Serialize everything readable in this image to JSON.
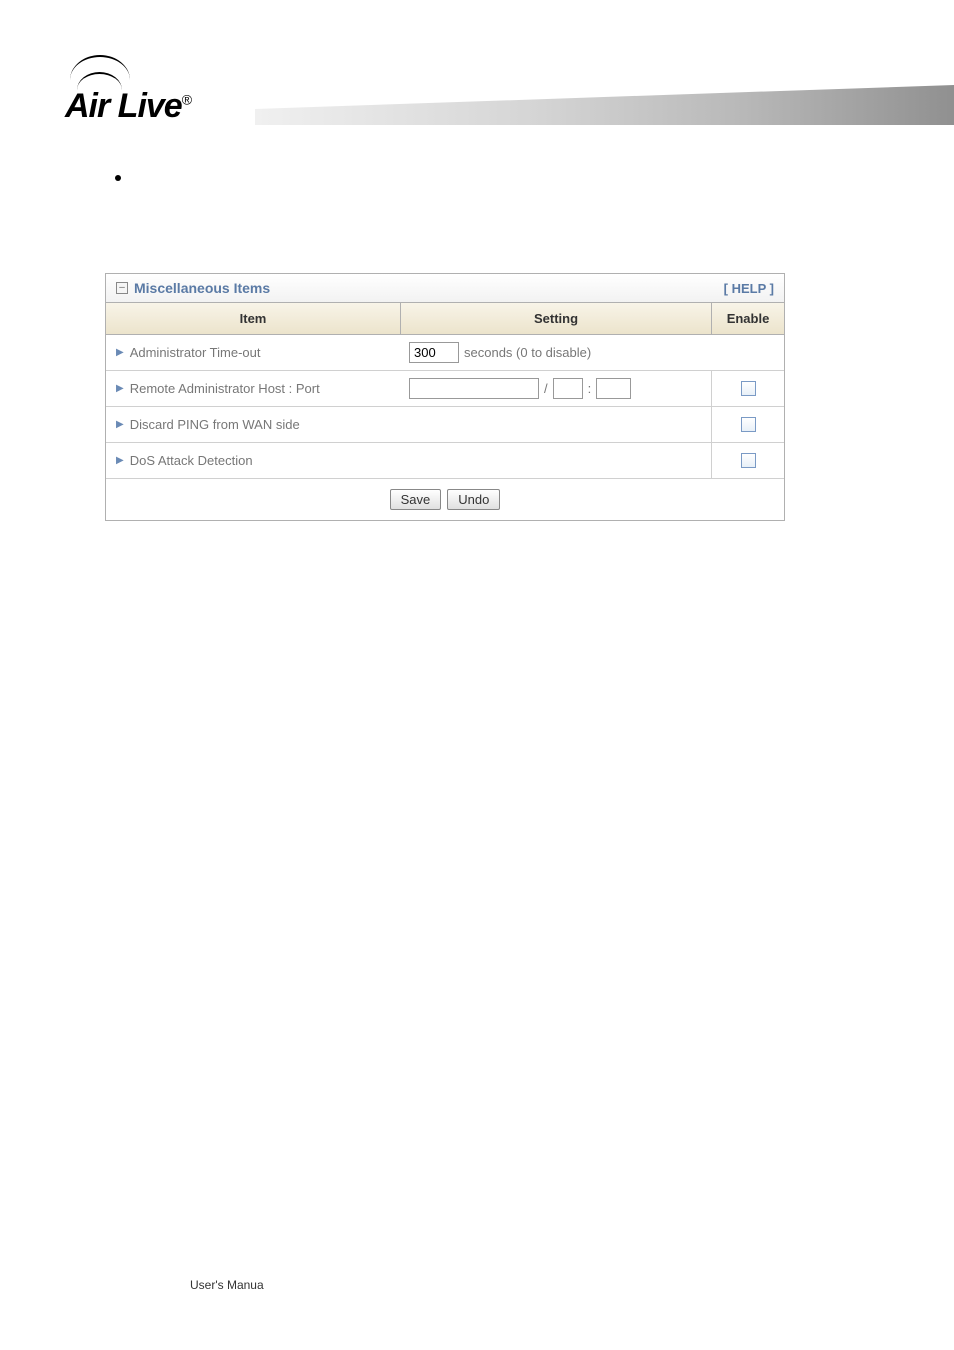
{
  "logo": {
    "text": "Air Live",
    "registered": "®"
  },
  "panel": {
    "title": "Miscellaneous Items",
    "help_label": "[ HELP ]",
    "collapse_glyph": "–"
  },
  "headers": {
    "item": "Item",
    "setting": "Setting",
    "enable": "Enable"
  },
  "rows": {
    "timeout": {
      "label": "Administrator Time-out",
      "value": "300",
      "unit": "seconds (0 to disable)"
    },
    "remote": {
      "label": "Remote Administrator Host : Port",
      "host": "",
      "mask": "",
      "port": "",
      "slash": "/",
      "colon": ":"
    },
    "ping": {
      "label": "Discard PING from WAN side"
    },
    "dos": {
      "label": "DoS Attack Detection"
    }
  },
  "buttons": {
    "save": "Save",
    "undo": "Undo"
  },
  "footer": {
    "text": "User's Manua"
  },
  "colors": {
    "title_color": "#5a7aa5",
    "header_bg_start": "#f8f4e8",
    "header_bg_end": "#ece4cc",
    "border": "#b0b0b0",
    "text_muted": "#777777"
  }
}
